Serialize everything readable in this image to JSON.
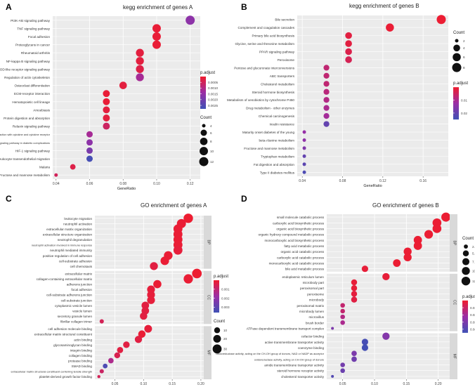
{
  "colors": {
    "low": "#3f51b5",
    "high": "#ef1c2e",
    "panel": "#ebebeb",
    "grid": "#ffffff",
    "strip": "#d9d9d9"
  },
  "chart_data": [
    {
      "type": "scatter",
      "panel_label": "A",
      "title": "kegg enrichment of genes A",
      "xlabel": "GeneRatio",
      "ylabel": "",
      "xlim": [
        0.038,
        0.126
      ],
      "xticks": [
        0.04,
        0.06,
        0.08,
        0.1,
        0.12
      ],
      "xtick_labels": [
        "0.04",
        "0.06",
        "0.08",
        "0.10",
        "0.12"
      ],
      "color_key": "p.adjust",
      "color_range": [
        0.0,
        0.0028
      ],
      "color_ticks": [
        0.0005,
        0.001,
        0.0015,
        0.002,
        0.0025
      ],
      "color_tick_labels": [
        "0.0005",
        "0.0010",
        "0.0015",
        "0.0020",
        "0.0025"
      ],
      "size_key": "Count",
      "size_range": [
        4,
        12
      ],
      "size_ticks": [
        4,
        6,
        8,
        10,
        12
      ],
      "size_tick_labels": [
        "4",
        "6",
        "8",
        "10",
        "12"
      ],
      "terms": [
        {
          "label": "PI3K-Akt signaling pathway",
          "x": 0.12,
          "count": 12,
          "p": 0.0016
        },
        {
          "label": "TNF signaling pathway",
          "x": 0.1,
          "count": 10,
          "p": 0.0001
        },
        {
          "label": "Focal adhesion",
          "x": 0.1,
          "count": 10,
          "p": 0.0001
        },
        {
          "label": "Proteoglycans in cancer",
          "x": 0.1,
          "count": 10,
          "p": 0.0001
        },
        {
          "label": "Rheumatoid arthritis",
          "x": 0.09,
          "count": 9,
          "p": 0.0002
        },
        {
          "label": "NF-kappa B signaling pathway",
          "x": 0.09,
          "count": 9,
          "p": 0.0002
        },
        {
          "label": "NOD-like receptor signaling pathway",
          "x": 0.09,
          "count": 9,
          "p": 0.0003
        },
        {
          "label": "Regulation of actin cytoskeleton",
          "x": 0.09,
          "count": 9,
          "p": 0.0012
        },
        {
          "label": "Osteoclast differentiation",
          "x": 0.08,
          "count": 8,
          "p": 0.0002
        },
        {
          "label": "ECM-receptor interaction",
          "x": 0.07,
          "count": 7,
          "p": 0.0001
        },
        {
          "label": "Hematopoietic cell lineage",
          "x": 0.07,
          "count": 7,
          "p": 0.0001
        },
        {
          "label": "Amoebiasis",
          "x": 0.07,
          "count": 7,
          "p": 0.0002
        },
        {
          "label": "Protein digestion and absorption",
          "x": 0.07,
          "count": 7,
          "p": 0.0002
        },
        {
          "label": "Relaxin signaling pathway",
          "x": 0.07,
          "count": 7,
          "p": 0.0006
        },
        {
          "label": "Viral protein interaction with cytokine and cytokine receptor",
          "x": 0.06,
          "count": 6,
          "p": 0.0012
        },
        {
          "label": "AGE-RAGE signaling pathway in diabetic complications",
          "x": 0.06,
          "count": 6,
          "p": 0.0016
        },
        {
          "label": "HIF-1 signaling pathway",
          "x": 0.06,
          "count": 6,
          "p": 0.0019
        },
        {
          "label": "Leukocyte transendothelial migration",
          "x": 0.06,
          "count": 6,
          "p": 0.0027
        },
        {
          "label": "Malaria",
          "x": 0.05,
          "count": 5,
          "p": 0.0003
        },
        {
          "label": "Fructose and mannose metabolism",
          "x": 0.04,
          "count": 4,
          "p": 0.0005
        }
      ]
    },
    {
      "type": "scatter",
      "panel_label": "B",
      "title": "kegg enrichment of genes B",
      "xlabel": "GeneRatio",
      "ylabel": "",
      "xlim": [
        0.035,
        0.185
      ],
      "xticks": [
        0.04,
        0.08,
        0.12,
        0.16
      ],
      "xtick_labels": [
        "0.04",
        "0.08",
        "0.12",
        "0.16"
      ],
      "color_key": "p.adjust",
      "color_range": [
        0.0,
        0.025
      ],
      "color_ticks": [
        0.01,
        0.02
      ],
      "color_tick_labels": [
        "0.01",
        "0.02"
      ],
      "size_key": "Count",
      "size_range": [
        2,
        8
      ],
      "size_ticks": [
        2,
        4,
        6,
        8
      ],
      "size_tick_labels": [
        "2",
        "4",
        "6",
        "8"
      ],
      "terms": [
        {
          "label": "Bile secretion",
          "x": 0.178,
          "count": 8,
          "p": 0.0005
        },
        {
          "label": "Complement and coagulation cascades",
          "x": 0.127,
          "count": 6,
          "p": 0.0008
        },
        {
          "label": "Primary bile acid biosynthesis",
          "x": 0.086,
          "count": 4,
          "p": 0.002
        },
        {
          "label": "Glycine, serine and threonine metabolism",
          "x": 0.086,
          "count": 4,
          "p": 0.002
        },
        {
          "label": "PPAR signaling pathway",
          "x": 0.086,
          "count": 4,
          "p": 0.003
        },
        {
          "label": "Peroxisome",
          "x": 0.086,
          "count": 4,
          "p": 0.004
        },
        {
          "label": "Pentose and glucuronate interconversions",
          "x": 0.064,
          "count": 3,
          "p": 0.007
        },
        {
          "label": "ABC transporters",
          "x": 0.064,
          "count": 3,
          "p": 0.007
        },
        {
          "label": "Cholesterol metabolism",
          "x": 0.064,
          "count": 3,
          "p": 0.007
        },
        {
          "label": "Steroid hormone biosynthesis",
          "x": 0.064,
          "count": 3,
          "p": 0.008
        },
        {
          "label": "Metabolism of xenobiotics by cytochrome P450",
          "x": 0.064,
          "count": 3,
          "p": 0.009
        },
        {
          "label": "Drug metabolism - other enzymes",
          "x": 0.064,
          "count": 3,
          "p": 0.01
        },
        {
          "label": "Chemical carcinogenesis",
          "x": 0.064,
          "count": 3,
          "p": 0.011
        },
        {
          "label": "Insulin resistance",
          "x": 0.064,
          "count": 3,
          "p": 0.02
        },
        {
          "label": "Maturity onset diabetes of the young",
          "x": 0.042,
          "count": 2,
          "p": 0.013
        },
        {
          "label": "beta-Alanine metabolism",
          "x": 0.042,
          "count": 2,
          "p": 0.014
        },
        {
          "label": "Fructose and mannose metabolism",
          "x": 0.042,
          "count": 2,
          "p": 0.016
        },
        {
          "label": "Tryptophan metabolism",
          "x": 0.042,
          "count": 2,
          "p": 0.02
        },
        {
          "label": "Fat digestion and absorption",
          "x": 0.042,
          "count": 2,
          "p": 0.021
        },
        {
          "label": "Type II diabetes mellitus",
          "x": 0.042,
          "count": 2,
          "p": 0.023
        }
      ]
    },
    {
      "type": "scatter",
      "panel_label": "C",
      "title": "GO enrichment of genes A",
      "xlabel": "GeneRatio",
      "ylabel": "",
      "xlim": [
        0.015,
        0.205
      ],
      "xticks": [
        0.05,
        0.1,
        0.15,
        0.2
      ],
      "xtick_labels": [
        "0.05",
        "0.10",
        "0.15",
        "0.20"
      ],
      "color_key": "p.adjust",
      "color_range": [
        0.0,
        0.0036
      ],
      "color_ticks": [
        0.001,
        0.002,
        0.003
      ],
      "color_tick_labels": [
        "0.001",
        "0.002",
        "0.003"
      ],
      "size_key": "Count",
      "size_range": [
        4,
        38
      ],
      "size_ticks": [
        10,
        20,
        30
      ],
      "size_tick_labels": [
        "10",
        "20",
        "30"
      ],
      "facets": [
        {
          "name": "BP",
          "terms": [
            {
              "label": "leukocyte migration",
              "x": 0.178,
              "count": 34,
              "p": 5e-05
            },
            {
              "label": "neutrophil activation",
              "x": 0.166,
              "count": 31,
              "p": 0.0001
            },
            {
              "label": "extracellular matrix organization",
              "x": 0.16,
              "count": 30,
              "p": 0.0001
            },
            {
              "label": "extracellular structure organization",
              "x": 0.16,
              "count": 30,
              "p": 0.0001
            },
            {
              "label": "neutrophil degranulation",
              "x": 0.16,
              "count": 30,
              "p": 0.0001
            },
            {
              "label": "neutrophil activation involved in immune response",
              "x": 0.16,
              "count": 30,
              "p": 0.0001
            },
            {
              "label": "neutrophil mediated immunity",
              "x": 0.16,
              "count": 30,
              "p": 0.0002
            },
            {
              "label": "positive regulation of cell adhesion",
              "x": 0.143,
              "count": 27,
              "p": 0.0001
            },
            {
              "label": "cell-substrate adhesion",
              "x": 0.137,
              "count": 26,
              "p": 0.0001
            },
            {
              "label": "cell chemotaxis",
              "x": 0.118,
              "count": 22,
              "p": 0.0003
            }
          ]
        },
        {
          "name": "CC",
          "terms": [
            {
              "label": "extracellular matrix",
              "x": 0.193,
              "count": 36,
              "p": 5e-05
            },
            {
              "label": "collagen-containing extracellular matrix",
              "x": 0.178,
              "count": 33,
              "p": 0.0001
            },
            {
              "label": "adherens junction",
              "x": 0.124,
              "count": 23,
              "p": 0.0001
            },
            {
              "label": "focal adhesion",
              "x": 0.113,
              "count": 21,
              "p": 0.0002
            },
            {
              "label": "cell-substrate adherens junction",
              "x": 0.113,
              "count": 21,
              "p": 0.0002
            },
            {
              "label": "cell-substrate junction",
              "x": 0.113,
              "count": 21,
              "p": 0.0002
            },
            {
              "label": "cytoplasmic vesicle lumen",
              "x": 0.103,
              "count": 19,
              "p": 0.0003
            },
            {
              "label": "vesicle lumen",
              "x": 0.103,
              "count": 19,
              "p": 0.0003
            },
            {
              "label": "secretory granule lumen",
              "x": 0.1,
              "count": 18,
              "p": 0.0003
            },
            {
              "label": "fibrillar collagen trimer",
              "x": 0.027,
              "count": 5,
              "p": 0.0006
            }
          ]
        },
        {
          "name": "MF",
          "terms": [
            {
              "label": "cell adhesion molecule binding",
              "x": 0.108,
              "count": 20,
              "p": 0.0002
            },
            {
              "label": "extracellular matrix structural constituent",
              "x": 0.097,
              "count": 18,
              "p": 0.0001
            },
            {
              "label": "actin binding",
              "x": 0.091,
              "count": 17,
              "p": 0.0003
            },
            {
              "label": "glycosaminoglycan binding",
              "x": 0.07,
              "count": 13,
              "p": 0.0003
            },
            {
              "label": "integrin binding",
              "x": 0.059,
              "count": 11,
              "p": 0.0003
            },
            {
              "label": "collagen binding",
              "x": 0.054,
              "count": 10,
              "p": 0.0005
            },
            {
              "label": "protease binding",
              "x": 0.043,
              "count": 8,
              "p": 0.0014
            },
            {
              "label": "SMAD binding",
              "x": 0.033,
              "count": 6,
              "p": 0.0033
            },
            {
              "label": "extracellular matrix structural constituent conferring tensile strength",
              "x": 0.027,
              "count": 5,
              "p": 0.0008
            },
            {
              "label": "platelet-derived growth factor binding",
              "x": 0.022,
              "count": 4,
              "p": 0.0006
            }
          ]
        }
      ]
    },
    {
      "type": "scatter",
      "panel_label": "D",
      "title": "GO enrichment of genes B",
      "xlabel": "GeneRatio",
      "ylabel": "",
      "xlim": [
        0.025,
        0.218
      ],
      "xticks": [
        0.05,
        0.1,
        0.15,
        0.2
      ],
      "xtick_labels": [
        "0.05",
        "0.10",
        "0.15",
        "0.20"
      ],
      "color_key": "p.adjust",
      "color_range": [
        0.0,
        0.045
      ],
      "color_ticks": [
        0.01,
        0.02,
        0.03,
        0.04
      ],
      "color_tick_labels": [
        "0.01",
        "0.02",
        "0.03",
        "0.04"
      ],
      "size_key": "Count",
      "size_range": [
        2,
        14
      ],
      "size_ticks": [
        2.5,
        5.0,
        7.5,
        10.0,
        12.5
      ],
      "size_tick_labels": [
        "2.5",
        "5.0",
        "7.5",
        "10.0",
        "12.5"
      ],
      "facets": [
        {
          "name": "BP",
          "terms": [
            {
              "label": "small molecule catabolic process",
              "x": 0.212,
              "count": 14,
              "p": 0.001
            },
            {
              "label": "carboxylic acid biosynthetic process",
              "x": 0.198,
              "count": 13,
              "p": 0.001
            },
            {
              "label": "organic acid biosynthetic process",
              "x": 0.198,
              "count": 13,
              "p": 0.001
            },
            {
              "label": "organic hydroxy compound metabolic process",
              "x": 0.185,
              "count": 12,
              "p": 0.001
            },
            {
              "label": "monocarboxylic acid biosynthetic process",
              "x": 0.168,
              "count": 11,
              "p": 0.001
            },
            {
              "label": "fatty acid metabolic process",
              "x": 0.168,
              "count": 11,
              "p": 0.001
            },
            {
              "label": "organic acid catabolic process",
              "x": 0.152,
              "count": 10,
              "p": 0.001
            },
            {
              "label": "carboxylic acid catabolic process",
              "x": 0.152,
              "count": 10,
              "p": 0.001
            },
            {
              "label": "monocarboxylic acid catabolic process",
              "x": 0.135,
              "count": 9,
              "p": 0.001
            },
            {
              "label": "bile acid metabolic process",
              "x": 0.085,
              "count": 6,
              "p": 0.002
            }
          ]
        },
        {
          "name": "CC",
          "terms": [
            {
              "label": "endoplasmic reticulum lumen",
              "x": 0.118,
              "count": 8,
              "p": 0.002
            },
            {
              "label": "microbody part",
              "x": 0.068,
              "count": 5,
              "p": 0.002
            },
            {
              "label": "peroxisomal part",
              "x": 0.068,
              "count": 5,
              "p": 0.002
            },
            {
              "label": "peroxisome",
              "x": 0.068,
              "count": 5,
              "p": 0.003
            },
            {
              "label": "microbody",
              "x": 0.068,
              "count": 5,
              "p": 0.004
            },
            {
              "label": "peroxisomal matrix",
              "x": 0.05,
              "count": 3,
              "p": 0.012
            },
            {
              "label": "microbody lumen",
              "x": 0.05,
              "count": 3,
              "p": 0.012
            },
            {
              "label": "microvillus",
              "x": 0.05,
              "count": 3,
              "p": 0.016
            },
            {
              "label": "brush border",
              "x": 0.05,
              "count": 3,
              "p": 0.018
            },
            {
              "label": "ATPase dependent transmembrane transport complex",
              "x": 0.034,
              "count": 2,
              "p": 0.03
            }
          ]
        },
        {
          "name": "MF",
          "terms": [
            {
              "label": "cofactor binding",
              "x": 0.118,
              "count": 8,
              "p": 0.028
            },
            {
              "label": "active transmembrane transporter activity",
              "x": 0.085,
              "count": 6,
              "p": 0.043
            },
            {
              "label": "coenzyme binding",
              "x": 0.085,
              "count": 6,
              "p": 0.044
            },
            {
              "label": "oxidoreductase activity, acting on the CH-OH group of donors, NAD or NADP as acceptor",
              "x": 0.068,
              "count": 4,
              "p": 0.03
            },
            {
              "label": "oxidoreductase activity, acting on CH-OH group of donors",
              "x": 0.068,
              "count": 4,
              "p": 0.033
            },
            {
              "label": "amide transmembrane transporter activity",
              "x": 0.05,
              "count": 3,
              "p": 0.032
            },
            {
              "label": "steroid hormone receptor activity",
              "x": 0.05,
              "count": 3,
              "p": 0.034
            },
            {
              "label": "cholesterol transporter activity",
              "x": 0.034,
              "count": 2,
              "p": 0.04
            }
          ]
        }
      ]
    }
  ]
}
